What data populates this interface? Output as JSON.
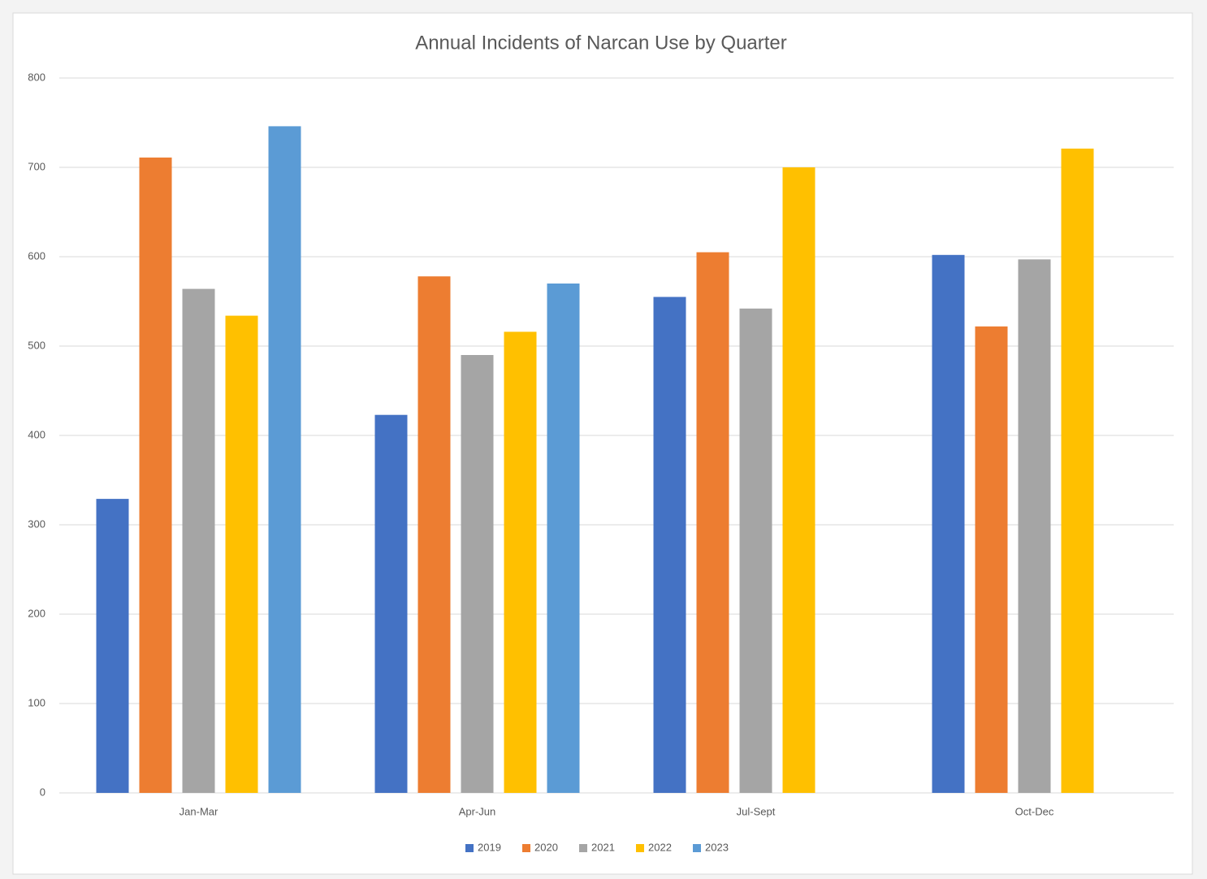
{
  "chart_data": {
    "type": "bar",
    "title": "Annual Incidents of Narcan Use by Quarter",
    "categories": [
      "Jan-Mar",
      "Apr-Jun",
      "Jul-Sept",
      "Oct-Dec"
    ],
    "series": [
      {
        "name": "2019",
        "color": "#4472c4",
        "values": [
          329,
          423,
          555,
          602
        ]
      },
      {
        "name": "2020",
        "color": "#ed7d31",
        "values": [
          711,
          578,
          605,
          522
        ]
      },
      {
        "name": "2021",
        "color": "#a5a5a5",
        "values": [
          564,
          490,
          542,
          597
        ]
      },
      {
        "name": "2022",
        "color": "#ffc000",
        "values": [
          534,
          516,
          700,
          721
        ]
      },
      {
        "name": "2023",
        "color": "#5b9bd5",
        "values": [
          746,
          570,
          null,
          null
        ]
      }
    ],
    "ylim": [
      0,
      800
    ],
    "yticks": [
      0,
      100,
      200,
      300,
      400,
      500,
      600,
      700,
      800
    ],
    "grid": true,
    "legend": "bottom"
  }
}
